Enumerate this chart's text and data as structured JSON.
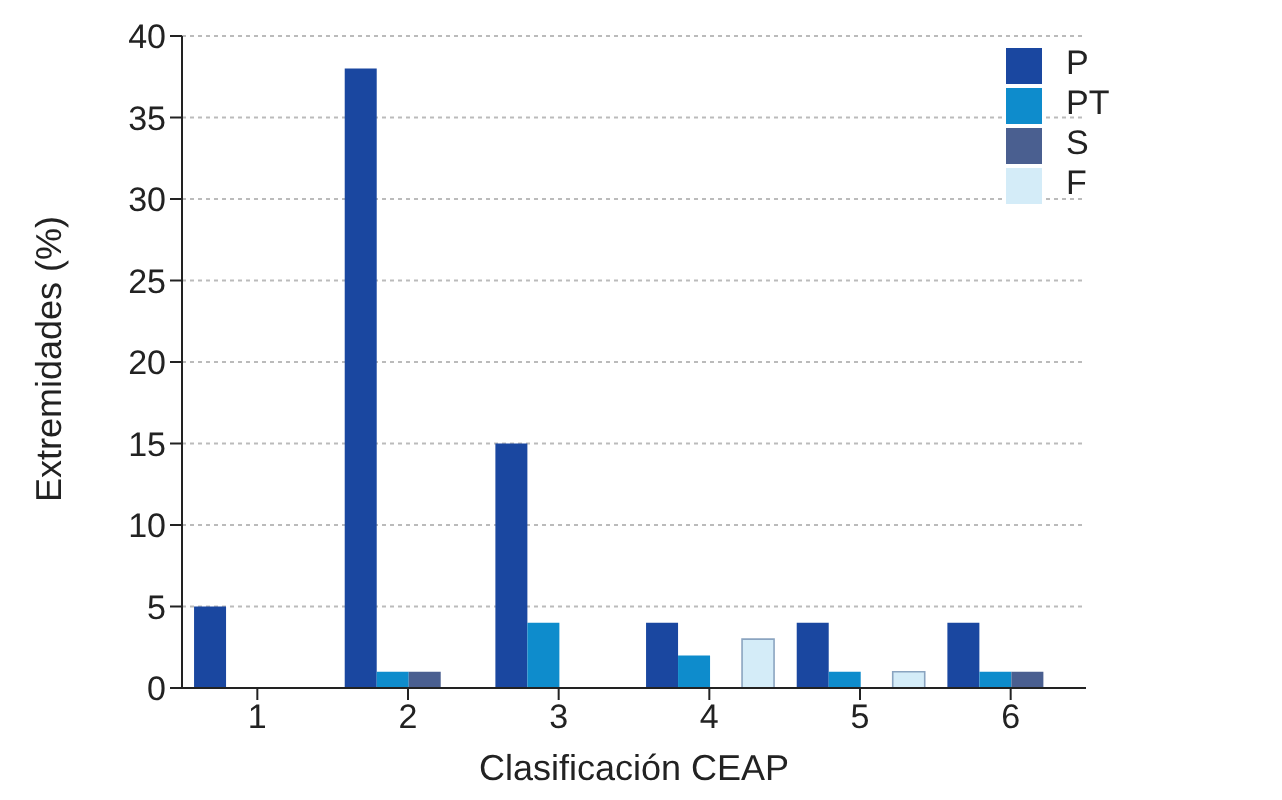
{
  "chart_data": {
    "type": "bar",
    "xlabel": "Clasificación CEAP",
    "ylabel": "Extremidades (%)",
    "categories": [
      "1",
      "2",
      "3",
      "4",
      "5",
      "6"
    ],
    "series": [
      {
        "name": "P",
        "color": "#1a47a0",
        "values": [
          5,
          38,
          15,
          4,
          4,
          4
        ]
      },
      {
        "name": "PT",
        "color": "#0e8ccc",
        "values": [
          0,
          1,
          4,
          2,
          1,
          1
        ]
      },
      {
        "name": "S",
        "color": "#4a5f90",
        "values": [
          0,
          1,
          0,
          0,
          0,
          1
        ]
      },
      {
        "name": "F",
        "color": "#d4ecf8",
        "values": [
          0,
          0,
          0,
          3,
          1,
          0
        ]
      }
    ],
    "ylim": [
      0,
      40
    ],
    "yticks": [
      0,
      5,
      10,
      15,
      20,
      25,
      30,
      35,
      40
    ],
    "grid": "y",
    "legend": "top right"
  }
}
